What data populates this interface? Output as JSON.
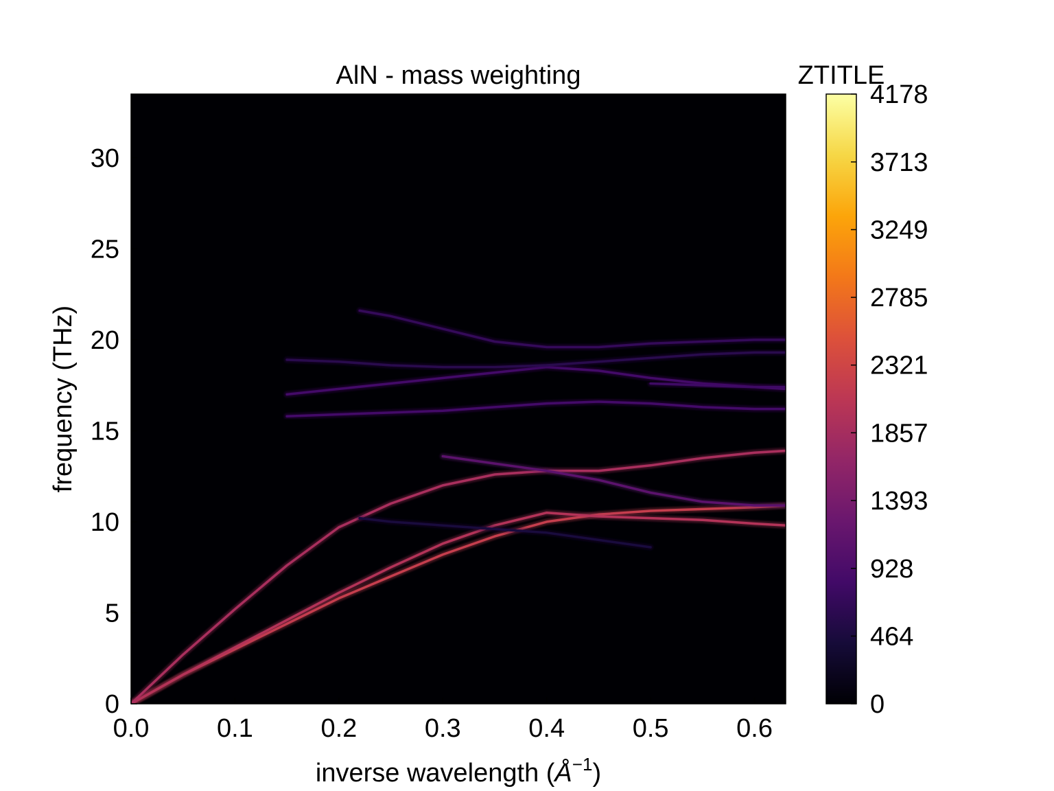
{
  "chart_data": {
    "type": "heatmap",
    "title": "AlN - mass weighting",
    "xlabel": "inverse wavelength (",
    "xlabel_unit_base": "Å",
    "xlabel_unit_exp": "−1",
    "xlabel_close": ")",
    "ylabel": "frequency (THz)",
    "colorbar_title": "ZTITLE",
    "colormap": "inferno",
    "xlim": [
      0.0,
      0.63
    ],
    "ylim": [
      0,
      33.5
    ],
    "zlim": [
      0,
      4178
    ],
    "x_ticks": [
      0.0,
      0.1,
      0.2,
      0.3,
      0.4,
      0.5,
      0.6
    ],
    "x_tick_labels": [
      "0.0",
      "0.1",
      "0.2",
      "0.3",
      "0.4",
      "0.5",
      "0.6"
    ],
    "y_ticks": [
      0,
      5,
      10,
      15,
      20,
      25,
      30
    ],
    "y_tick_labels": [
      "0",
      "5",
      "10",
      "15",
      "20",
      "25",
      "30"
    ],
    "colorbar_ticks": [
      0,
      464,
      928,
      1393,
      1857,
      2321,
      2785,
      3249,
      3713,
      4178
    ],
    "colorbar_tick_labels": [
      "0",
      "464",
      "928",
      "1393",
      "1857",
      "2321",
      "2785",
      "3249",
      "3713",
      "4178"
    ],
    "branches": [
      {
        "x": [
          0.0,
          0.05,
          0.1,
          0.15,
          0.2,
          0.25,
          0.3,
          0.35,
          0.4,
          0.45,
          0.5,
          0.55,
          0.6,
          0.63
        ],
        "y": [
          0.0,
          1.6,
          3.0,
          4.4,
          5.8,
          7.0,
          8.2,
          9.2,
          10.0,
          10.4,
          10.6,
          10.7,
          10.8,
          10.9
        ],
        "z": 2200
      },
      {
        "x": [
          0.0,
          0.05,
          0.1,
          0.15,
          0.2,
          0.25,
          0.3,
          0.35,
          0.4,
          0.45,
          0.5,
          0.55,
          0.6,
          0.63
        ],
        "y": [
          0.0,
          1.6,
          3.1,
          4.6,
          6.1,
          7.5,
          8.8,
          9.8,
          10.5,
          10.3,
          10.2,
          10.1,
          9.9,
          9.8
        ],
        "z": 2000
      },
      {
        "x": [
          0.0,
          0.05,
          0.1,
          0.15,
          0.2,
          0.25,
          0.3,
          0.35,
          0.4,
          0.45,
          0.5,
          0.55,
          0.6,
          0.63
        ],
        "y": [
          0.0,
          2.7,
          5.2,
          7.6,
          9.7,
          11.0,
          12.0,
          12.6,
          12.8,
          12.8,
          13.1,
          13.5,
          13.8,
          13.9
        ],
        "z": 1900
      },
      {
        "x": [
          0.3,
          0.35,
          0.4,
          0.45,
          0.5,
          0.55,
          0.6,
          0.63
        ],
        "y": [
          13.6,
          13.2,
          12.8,
          12.3,
          11.6,
          11.1,
          10.9,
          10.9
        ],
        "z": 1100
      },
      {
        "x": [
          0.22,
          0.25,
          0.3,
          0.35,
          0.4,
          0.45,
          0.5
        ],
        "y": [
          10.2,
          10.0,
          9.8,
          9.6,
          9.4,
          9.0,
          8.6
        ],
        "z": 450
      },
      {
        "x": [
          0.15,
          0.2,
          0.25,
          0.3,
          0.35,
          0.4,
          0.45,
          0.5,
          0.55,
          0.6,
          0.63
        ],
        "y": [
          15.8,
          15.9,
          16.0,
          16.1,
          16.3,
          16.5,
          16.6,
          16.5,
          16.3,
          16.2,
          16.2
        ],
        "z": 850
      },
      {
        "x": [
          0.15,
          0.2,
          0.25,
          0.3,
          0.35,
          0.4,
          0.45,
          0.5,
          0.55,
          0.6,
          0.63
        ],
        "y": [
          17.0,
          17.3,
          17.6,
          17.9,
          18.2,
          18.5,
          18.3,
          17.9,
          17.6,
          17.4,
          17.3
        ],
        "z": 850
      },
      {
        "x": [
          0.15,
          0.2,
          0.25,
          0.3,
          0.35,
          0.4,
          0.45,
          0.5,
          0.55,
          0.6,
          0.63
        ],
        "y": [
          18.9,
          18.8,
          18.6,
          18.5,
          18.5,
          18.6,
          18.8,
          19.0,
          19.2,
          19.3,
          19.3
        ],
        "z": 600
      },
      {
        "x": [
          0.22,
          0.25,
          0.3,
          0.35,
          0.4,
          0.45,
          0.5,
          0.55,
          0.6,
          0.63
        ],
        "y": [
          21.6,
          21.3,
          20.6,
          19.9,
          19.6,
          19.6,
          19.8,
          19.9,
          20.0,
          20.0
        ],
        "z": 700
      },
      {
        "x": [
          0.5,
          0.55,
          0.6,
          0.63
        ],
        "y": [
          17.6,
          17.5,
          17.4,
          17.4
        ],
        "z": 800
      }
    ]
  }
}
